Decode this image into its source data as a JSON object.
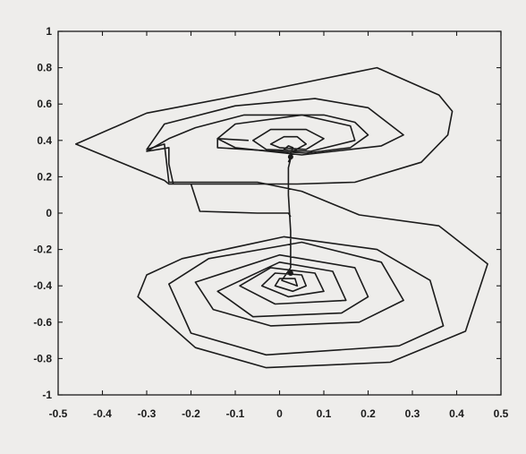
{
  "chart_data": {
    "type": "line",
    "title": "",
    "xlabel": "",
    "ylabel": "",
    "xlim": [
      -0.5,
      0.5
    ],
    "ylim": [
      -1,
      1
    ],
    "x_ticks": [
      "-0.5",
      "-0.4",
      "-0.3",
      "-0.2",
      "-0.1",
      "0",
      "0.1",
      "0.2",
      "0.3",
      "0.4",
      "0.5"
    ],
    "y_ticks": [
      "1",
      "0.8",
      "0.6",
      "0.4",
      "0.2",
      "0",
      "-0.2",
      "-0.4",
      "-0.6",
      "-0.8",
      "-1"
    ],
    "grid": false,
    "line_color": "#1b1b1b",
    "series": [
      {
        "points": [
          [
            0.025,
            0.3
          ],
          [
            0.02,
            0.25
          ],
          [
            0.02,
            0.1
          ],
          [
            0.025,
            -0.1
          ],
          [
            0.025,
            -0.3
          ],
          [
            0.005,
            -0.37
          ],
          [
            0.04,
            -0.4
          ],
          [
            0.035,
            -0.36
          ],
          [
            0.0,
            -0.36
          ],
          [
            -0.01,
            -0.4
          ],
          [
            0.03,
            -0.43
          ],
          [
            0.06,
            -0.4
          ],
          [
            0.05,
            -0.34
          ],
          [
            -0.01,
            -0.33
          ],
          [
            -0.04,
            -0.4
          ],
          [
            0.02,
            -0.46
          ],
          [
            0.1,
            -0.43
          ],
          [
            0.08,
            -0.33
          ],
          [
            -0.02,
            -0.3
          ],
          [
            -0.09,
            -0.4
          ],
          [
            -0.01,
            -0.5
          ],
          [
            0.15,
            -0.48
          ],
          [
            0.12,
            -0.32
          ],
          [
            0.0,
            -0.27
          ],
          [
            -0.14,
            -0.43
          ],
          [
            -0.06,
            -0.57
          ],
          [
            0.14,
            -0.55
          ],
          [
            0.2,
            -0.46
          ],
          [
            0.17,
            -0.3
          ],
          [
            0.0,
            -0.23
          ],
          [
            -0.19,
            -0.38
          ],
          [
            -0.15,
            -0.53
          ],
          [
            -0.02,
            -0.62
          ],
          [
            0.18,
            -0.6
          ],
          [
            0.28,
            -0.48
          ],
          [
            0.23,
            -0.27
          ],
          [
            0.05,
            -0.16
          ],
          [
            -0.16,
            -0.25
          ],
          [
            -0.25,
            -0.39
          ],
          [
            -0.2,
            -0.66
          ],
          [
            -0.03,
            -0.78
          ],
          [
            0.27,
            -0.73
          ],
          [
            0.37,
            -0.62
          ],
          [
            0.34,
            -0.37
          ],
          [
            0.22,
            -0.2
          ],
          [
            0.01,
            -0.13
          ],
          [
            -0.22,
            -0.25
          ],
          [
            -0.3,
            -0.34
          ],
          [
            -0.32,
            -0.46
          ],
          [
            -0.19,
            -0.74
          ],
          [
            -0.03,
            -0.85
          ],
          [
            0.25,
            -0.82
          ],
          [
            0.42,
            -0.65
          ],
          [
            0.47,
            -0.28
          ],
          [
            0.36,
            -0.07
          ],
          [
            0.18,
            -0.01
          ],
          [
            0.05,
            0.12
          ],
          [
            -0.05,
            0.17
          ],
          [
            -0.19,
            0.17
          ],
          [
            -0.25,
            0.17
          ],
          [
            -0.26,
            0.38
          ],
          [
            -0.3,
            0.35
          ],
          [
            -0.26,
            0.49
          ],
          [
            -0.1,
            0.59
          ],
          [
            0.08,
            0.63
          ],
          [
            0.2,
            0.58
          ],
          [
            0.28,
            0.43
          ],
          [
            0.23,
            0.37
          ],
          [
            0.05,
            0.32
          ],
          [
            -0.1,
            0.36
          ],
          [
            -0.14,
            0.41
          ],
          [
            -0.1,
            0.49
          ],
          [
            0.05,
            0.54
          ],
          [
            0.16,
            0.48
          ],
          [
            0.17,
            0.4
          ],
          [
            0.07,
            0.34
          ],
          [
            -0.03,
            0.35
          ],
          [
            -0.06,
            0.4
          ],
          [
            -0.02,
            0.46
          ],
          [
            0.06,
            0.46
          ],
          [
            0.1,
            0.41
          ],
          [
            0.06,
            0.35
          ],
          [
            0.0,
            0.36
          ],
          [
            -0.02,
            0.38
          ],
          [
            0.01,
            0.42
          ],
          [
            0.04,
            0.42
          ],
          [
            0.06,
            0.38
          ],
          [
            0.03,
            0.34
          ],
          [
            0.01,
            0.35
          ],
          [
            0.02,
            0.37
          ],
          [
            0.03,
            0.36
          ],
          [
            0.025,
            0.33
          ],
          [
            0.025,
            0.31
          ],
          [
            0.02,
            0.28
          ]
        ]
      },
      {
        "points": [
          [
            -0.07,
            0.4
          ],
          [
            -0.14,
            0.41
          ],
          [
            -0.14,
            0.36
          ],
          [
            0.06,
            0.33
          ],
          [
            0.16,
            0.36
          ],
          [
            0.2,
            0.43
          ],
          [
            0.17,
            0.5
          ],
          [
            0.1,
            0.54
          ],
          [
            -0.08,
            0.54
          ],
          [
            -0.19,
            0.47
          ],
          [
            -0.25,
            0.41
          ],
          [
            -0.3,
            0.34
          ],
          [
            -0.25,
            0.36
          ],
          [
            -0.25,
            0.27
          ],
          [
            -0.24,
            0.16
          ],
          [
            -0.14,
            0.16
          ],
          [
            0.04,
            0.16
          ],
          [
            0.17,
            0.17
          ],
          [
            0.32,
            0.28
          ],
          [
            0.38,
            0.43
          ],
          [
            0.39,
            0.56
          ],
          [
            0.36,
            0.65
          ],
          [
            0.22,
            0.8
          ],
          [
            0.0,
            0.69
          ],
          [
            -0.3,
            0.55
          ],
          [
            -0.46,
            0.38
          ],
          [
            -0.26,
            0.18
          ],
          [
            -0.25,
            0.16
          ],
          [
            -0.2,
            0.16
          ],
          [
            -0.18,
            0.01
          ],
          [
            -0.05,
            0.0
          ],
          [
            0.0,
            0.0
          ],
          [
            0.02,
            0.0
          ],
          [
            0.025,
            -0.02
          ]
        ]
      }
    ],
    "markers": [
      [
        0.025,
        0.31
      ],
      [
        0.025,
        -0.33
      ]
    ]
  }
}
